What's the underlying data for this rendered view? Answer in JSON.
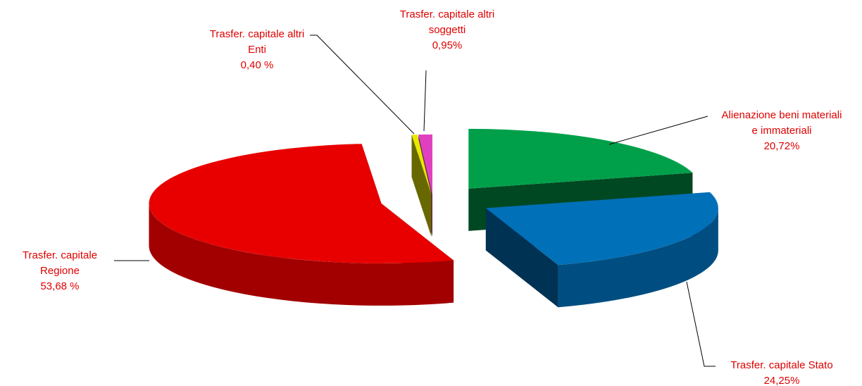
{
  "chart_data": {
    "type": "pie",
    "categories": [
      "Alienazione beni materiali e immateriali",
      "Trasfer. capitale Stato",
      "Trasfer. capitale Regione",
      "Trasfer. capitale altri Enti",
      "Trasfer. capitale altri soggetti"
    ],
    "values": [
      20.72,
      24.25,
      53.68,
      0.4,
      0.95
    ],
    "value_labels": [
      "20,72%",
      "24,25%",
      "53,68 %",
      "0,40 %",
      "0,95%"
    ],
    "colors": [
      "#00a04a",
      "#0070b8",
      "#e80000",
      "#e8e800",
      "#e040c0"
    ]
  }
}
